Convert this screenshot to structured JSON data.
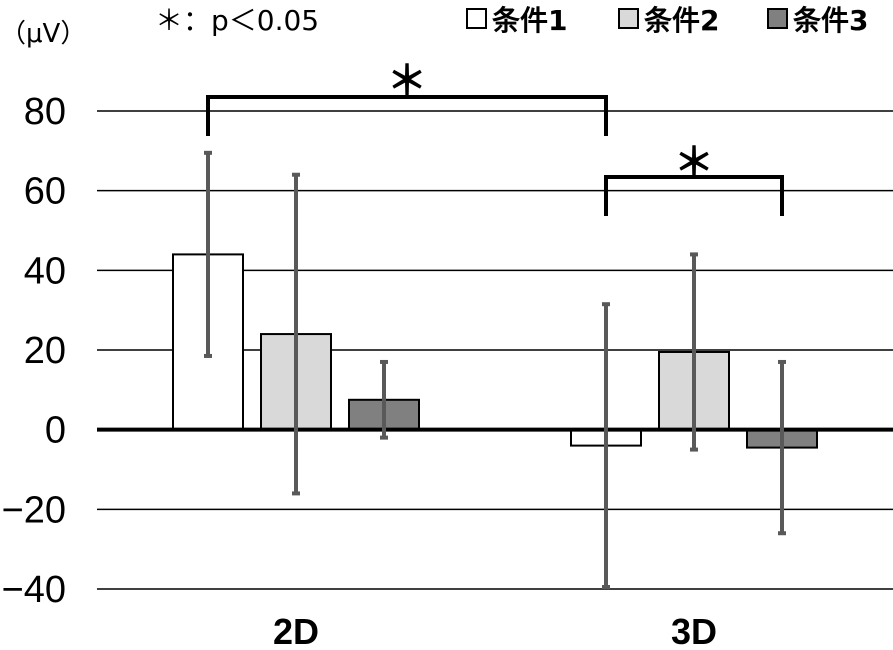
{
  "chart_data": {
    "type": "bar",
    "y_unit_label": "（μV）",
    "significance_note": "＊：p＜0.05",
    "categories": [
      "2D",
      "3D"
    ],
    "series": [
      {
        "name": "条件1",
        "color": "#ffffff",
        "values": [
          44,
          -4
        ],
        "error": [
          25.5,
          35.5
        ]
      },
      {
        "name": "条件2",
        "color": "#d9d9d9",
        "values": [
          24,
          19.5
        ],
        "error": [
          40,
          24.5
        ]
      },
      {
        "name": "条件3",
        "color": "#808080",
        "values": [
          7.5,
          -4.5
        ],
        "error": [
          9.5,
          21.5
        ]
      }
    ],
    "ylim": [
      -40,
      80
    ],
    "yticks": [
      80,
      60,
      40,
      20,
      0,
      -20,
      -40
    ],
    "ytick_labels": [
      "80",
      "60",
      "40",
      "20",
      "0",
      "−20",
      "−40"
    ],
    "grid": true,
    "legend_position": "top-right",
    "significance_brackets": [
      {
        "from": "2D 条件1",
        "to": "3D 条件1",
        "label": "＊"
      },
      {
        "from": "3D 条件1",
        "to": "3D 条件3",
        "label": "＊"
      }
    ]
  }
}
